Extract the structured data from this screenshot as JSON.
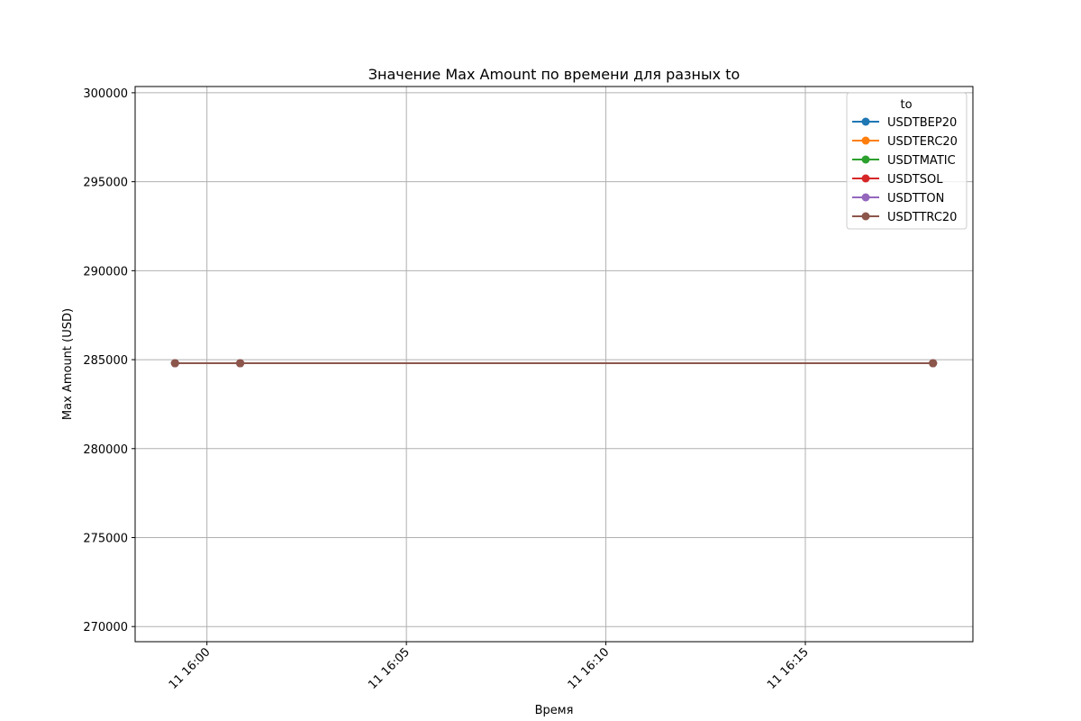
{
  "chart_data": {
    "type": "line",
    "title": "Значение Max Amount по времени для разных to",
    "xlabel": "Время",
    "ylabel": "Max Amount (USD)",
    "x": [
      "2024-01-11 15:59:12",
      "2024-01-11 16:00:50",
      "2024-01-11 16:18:12"
    ],
    "xticks": [
      {
        "value": "2024-01-11 16:00:00",
        "label": "11 16:00"
      },
      {
        "value": "2024-01-11 16:05:00",
        "label": "11 16:05"
      },
      {
        "value": "2024-01-11 16:10:00",
        "label": "11 16:10"
      },
      {
        "value": "2024-01-11 16:15:00",
        "label": "11 16:15"
      }
    ],
    "xlim": [
      "2024-01-11 15:58:12",
      "2024-01-11 16:19:12"
    ],
    "yticks": [
      270000,
      275000,
      280000,
      285000,
      290000,
      295000,
      300000
    ],
    "ylim": [
      269150,
      300350
    ],
    "grid": true,
    "legend": {
      "title": "to",
      "position": "top-right"
    },
    "series": [
      {
        "name": "USDTBEP20",
        "color": "#1f77b4",
        "values": [
          284800,
          284800,
          284800
        ]
      },
      {
        "name": "USDTERC20",
        "color": "#ff7f0e",
        "values": [
          284800,
          284800,
          284800
        ]
      },
      {
        "name": "USDTMATIC",
        "color": "#2ca02c",
        "values": [
          284800,
          284800,
          284800
        ]
      },
      {
        "name": "USDTSOL",
        "color": "#d62728",
        "values": [
          284800,
          284800,
          284800
        ]
      },
      {
        "name": "USDTTON",
        "color": "#9467bd",
        "values": [
          284800,
          284800,
          284800
        ]
      },
      {
        "name": "USDTTRC20",
        "color": "#8c564b",
        "values": [
          284800,
          284800,
          284800
        ]
      }
    ]
  }
}
